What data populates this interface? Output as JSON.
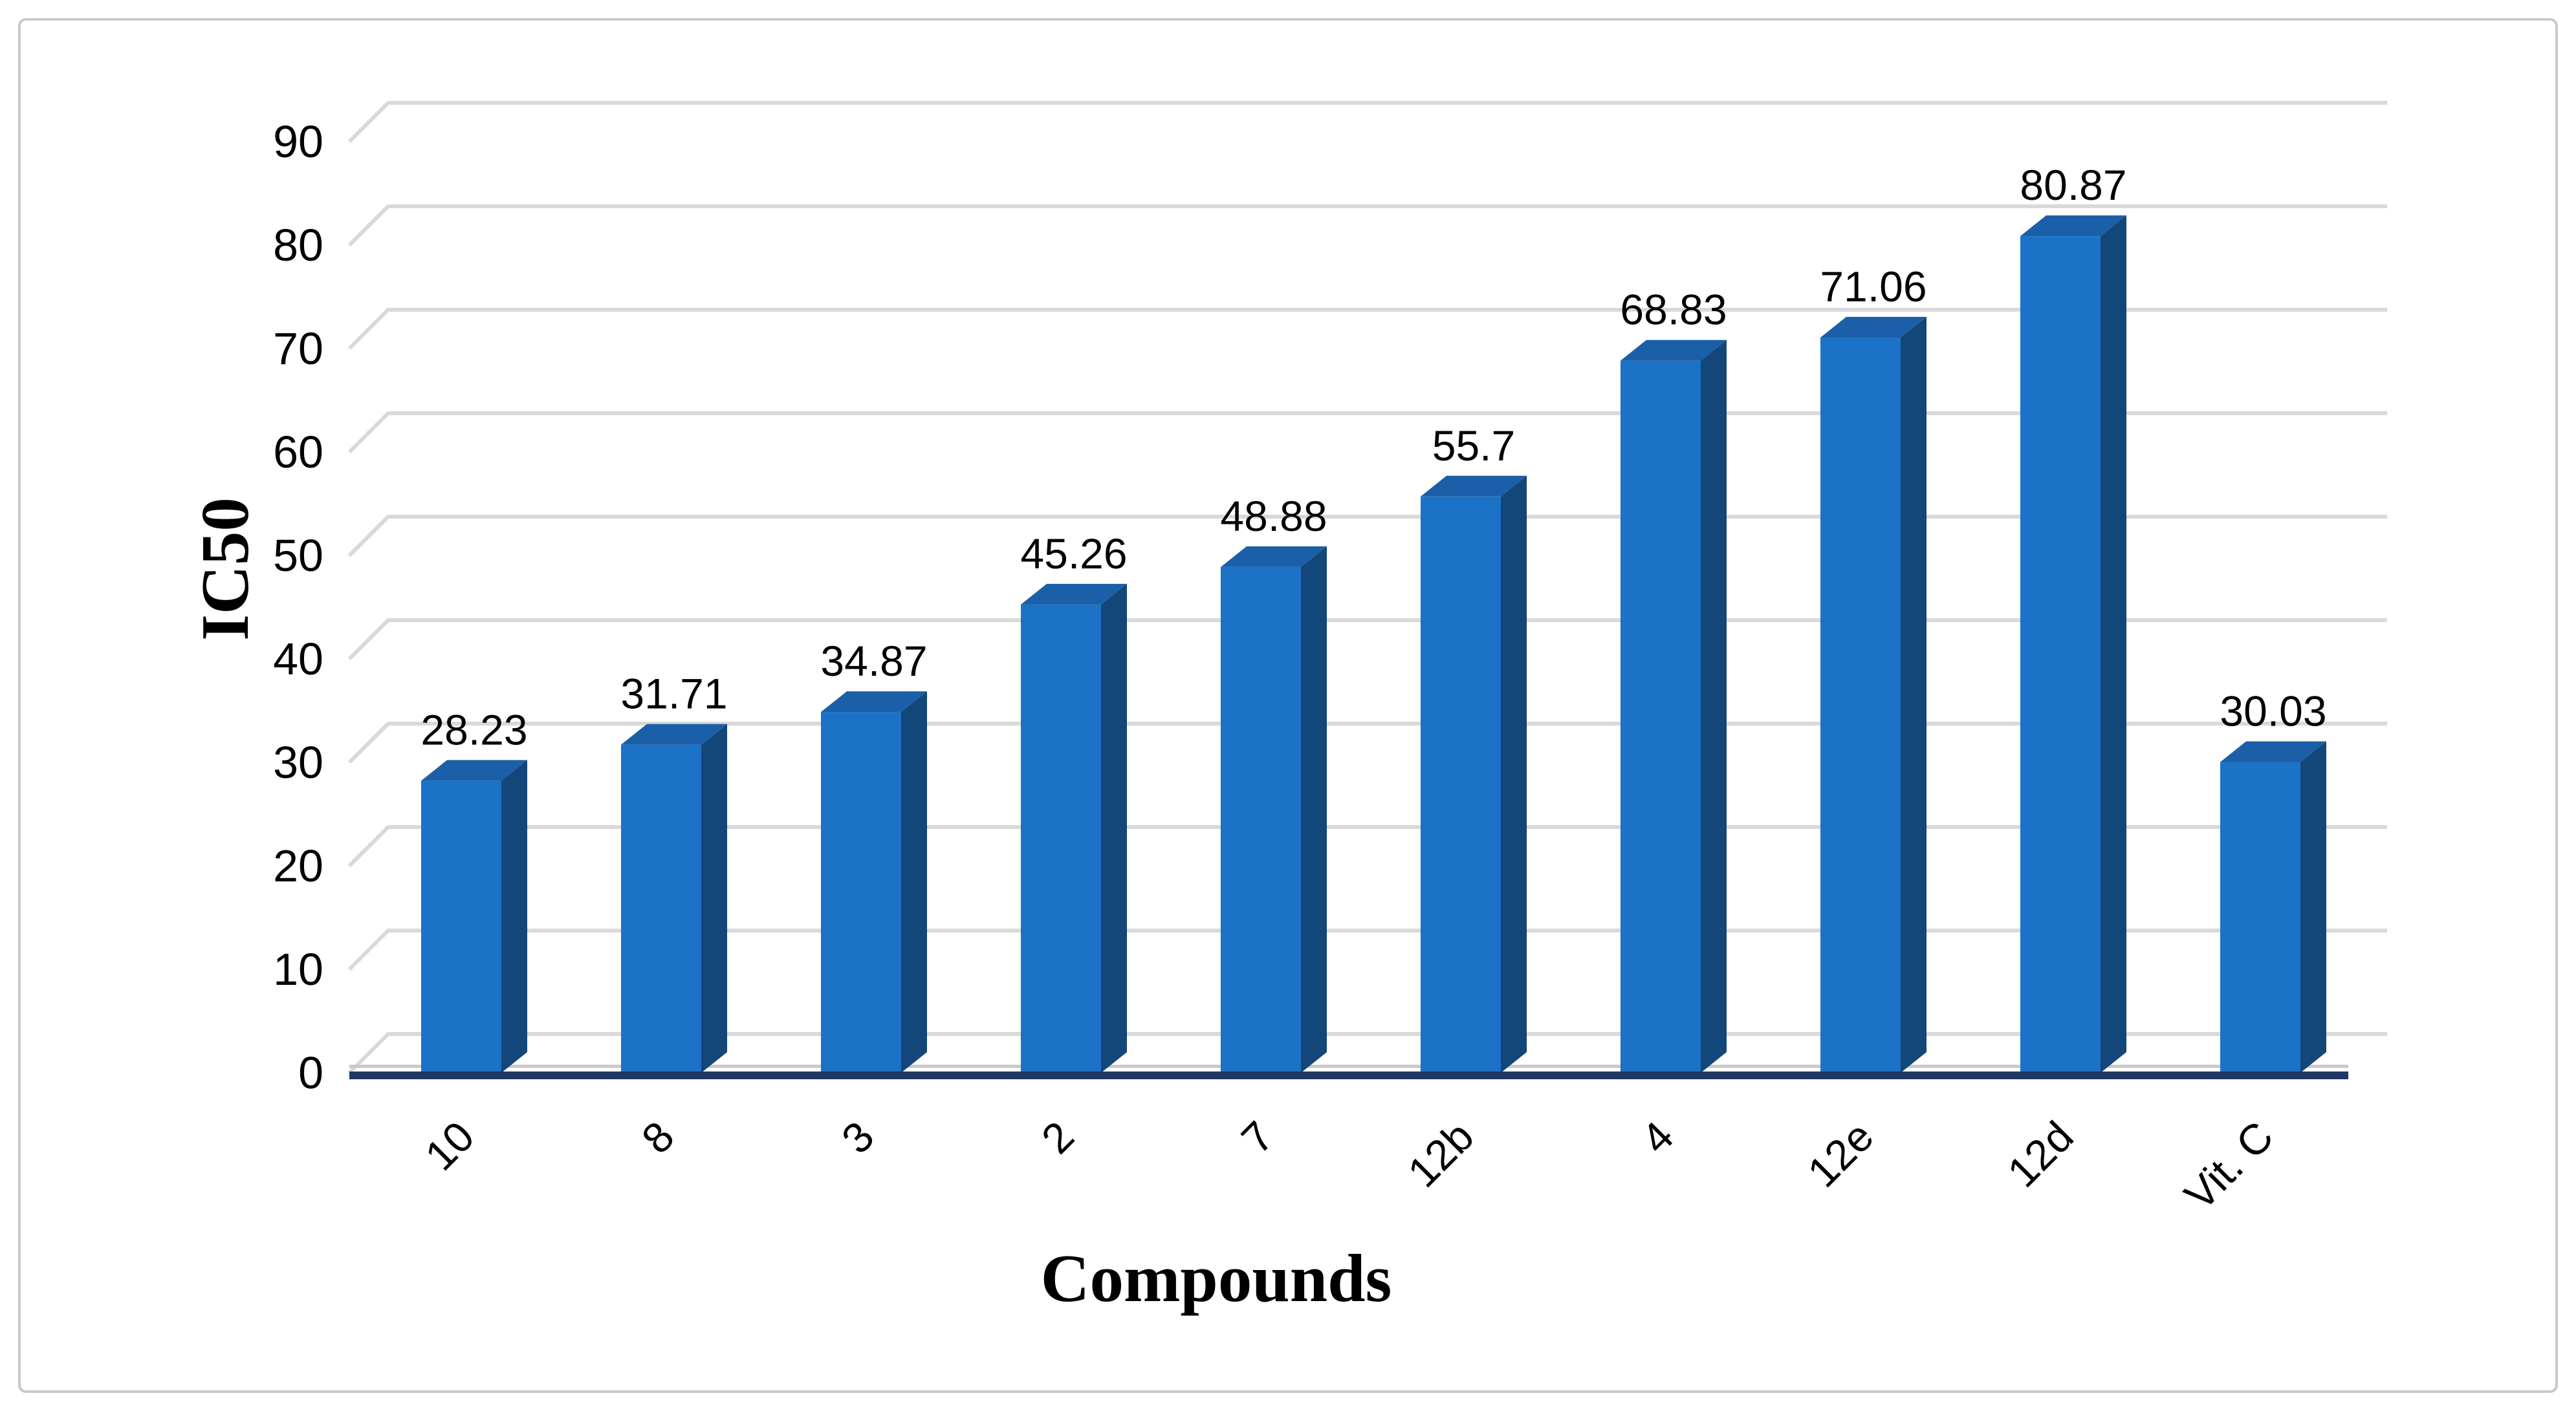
{
  "figure": {
    "background": "#ffffff",
    "border_color": "#c9c9c9"
  },
  "chart_data": {
    "type": "bar",
    "style": "3d",
    "title": "",
    "xlabel": "Compounds",
    "ylabel": "IC50",
    "categories": [
      "10",
      "8",
      "3",
      "2",
      "7",
      "12b",
      "4",
      "12e",
      "12d",
      "Vit. C"
    ],
    "values": [
      28.23,
      31.71,
      34.87,
      45.26,
      48.88,
      55.7,
      68.83,
      71.06,
      80.87,
      30.03
    ],
    "data_labels": [
      "28.23",
      "31.71",
      "34.87",
      "45.26",
      "48.88",
      "55.7",
      "68.83",
      "71.06",
      "80.87",
      "30.03"
    ],
    "ylim": [
      0,
      90
    ],
    "ytick_step": 10,
    "yticks": [
      0,
      10,
      20,
      30,
      40,
      50,
      60,
      70,
      80,
      90
    ],
    "grid": "horizontal-backwall",
    "legend": "none",
    "colors": {
      "bar_front": "#1c72c6",
      "bar_top": "#1b5fa8",
      "bar_side": "#134679",
      "baseline": "#1f3864",
      "floor_edge": "#c8c8c8",
      "gridline": "#d9d9d9",
      "label": "#000000"
    }
  }
}
